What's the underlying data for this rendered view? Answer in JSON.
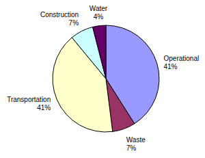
{
  "chart_data": {
    "type": "pie",
    "categories": [
      "Operational",
      "Waste",
      "Transportation",
      "Construction",
      "Water"
    ],
    "values": [
      41,
      7,
      41,
      7,
      4
    ],
    "value_labels": [
      "41%",
      "7%",
      "41%",
      "7%",
      "4%"
    ],
    "colors": [
      "#9999ff",
      "#993366",
      "#ffffcc",
      "#ccffff",
      "#660066"
    ],
    "data_labels": true
  }
}
